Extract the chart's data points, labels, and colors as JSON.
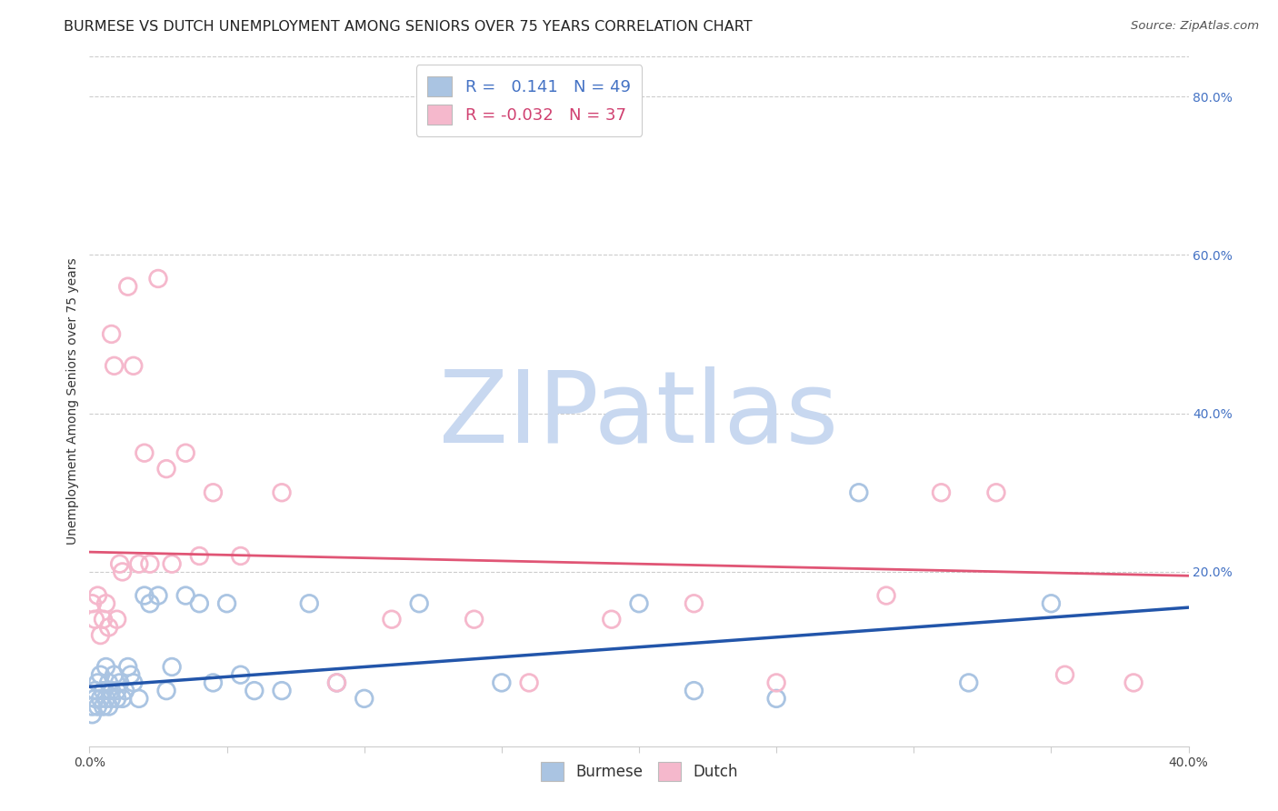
{
  "title": "BURMESE VS DUTCH UNEMPLOYMENT AMONG SENIORS OVER 75 YEARS CORRELATION CHART",
  "source": "Source: ZipAtlas.com",
  "ylabel": "Unemployment Among Seniors over 75 years",
  "xlim": [
    0.0,
    0.4
  ],
  "ylim": [
    -0.02,
    0.85
  ],
  "burmese_R": 0.141,
  "burmese_N": 49,
  "dutch_R": -0.032,
  "dutch_N": 37,
  "blue_color": "#aac4e2",
  "pink_color": "#f5b8cc",
  "blue_edge_color": "#7aaad0",
  "pink_edge_color": "#e890aa",
  "blue_line_color": "#2255aa",
  "pink_line_color": "#e05575",
  "legend_blue_text_color": "#4472C4",
  "legend_pink_text_color": "#d04070",
  "right_yticks": [
    0.0,
    0.2,
    0.4,
    0.6,
    0.8
  ],
  "right_yticklabels": [
    "",
    "20.0%",
    "40.0%",
    "60.0%",
    "80.0%"
  ],
  "burmese_x": [
    0.001,
    0.001,
    0.002,
    0.002,
    0.003,
    0.003,
    0.004,
    0.004,
    0.005,
    0.005,
    0.006,
    0.006,
    0.007,
    0.007,
    0.008,
    0.008,
    0.009,
    0.01,
    0.01,
    0.011,
    0.012,
    0.013,
    0.014,
    0.015,
    0.016,
    0.018,
    0.02,
    0.022,
    0.025,
    0.028,
    0.03,
    0.035,
    0.04,
    0.045,
    0.05,
    0.055,
    0.06,
    0.07,
    0.08,
    0.09,
    0.1,
    0.12,
    0.15,
    0.2,
    0.22,
    0.25,
    0.28,
    0.32,
    0.35
  ],
  "burmese_y": [
    0.02,
    0.03,
    0.04,
    0.05,
    0.03,
    0.06,
    0.04,
    0.07,
    0.05,
    0.03,
    0.04,
    0.08,
    0.06,
    0.03,
    0.05,
    0.04,
    0.07,
    0.05,
    0.04,
    0.06,
    0.04,
    0.05,
    0.08,
    0.07,
    0.06,
    0.04,
    0.17,
    0.16,
    0.17,
    0.05,
    0.08,
    0.17,
    0.16,
    0.06,
    0.16,
    0.07,
    0.05,
    0.05,
    0.16,
    0.06,
    0.04,
    0.16,
    0.06,
    0.16,
    0.05,
    0.04,
    0.3,
    0.06,
    0.16
  ],
  "dutch_x": [
    0.001,
    0.002,
    0.003,
    0.004,
    0.005,
    0.006,
    0.007,
    0.008,
    0.009,
    0.01,
    0.011,
    0.012,
    0.014,
    0.016,
    0.018,
    0.02,
    0.022,
    0.025,
    0.028,
    0.03,
    0.035,
    0.04,
    0.045,
    0.055,
    0.07,
    0.09,
    0.11,
    0.14,
    0.16,
    0.19,
    0.22,
    0.25,
    0.29,
    0.31,
    0.33,
    0.355,
    0.38
  ],
  "dutch_y": [
    0.16,
    0.14,
    0.17,
    0.12,
    0.14,
    0.16,
    0.13,
    0.5,
    0.46,
    0.14,
    0.21,
    0.2,
    0.56,
    0.46,
    0.21,
    0.35,
    0.21,
    0.57,
    0.33,
    0.21,
    0.35,
    0.22,
    0.3,
    0.22,
    0.3,
    0.06,
    0.14,
    0.14,
    0.06,
    0.14,
    0.16,
    0.06,
    0.17,
    0.3,
    0.3,
    0.07,
    0.06
  ],
  "blue_trend_y0": 0.055,
  "blue_trend_y1": 0.155,
  "pink_trend_y0": 0.225,
  "pink_trend_y1": 0.195,
  "watermark_text": "ZIPatlas",
  "watermark_color": "#c8d8f0",
  "watermark_fontsize": 80,
  "grid_color": "#cccccc",
  "title_fontsize": 11.5,
  "axis_fontsize": 10,
  "right_tick_color": "#4472C4"
}
